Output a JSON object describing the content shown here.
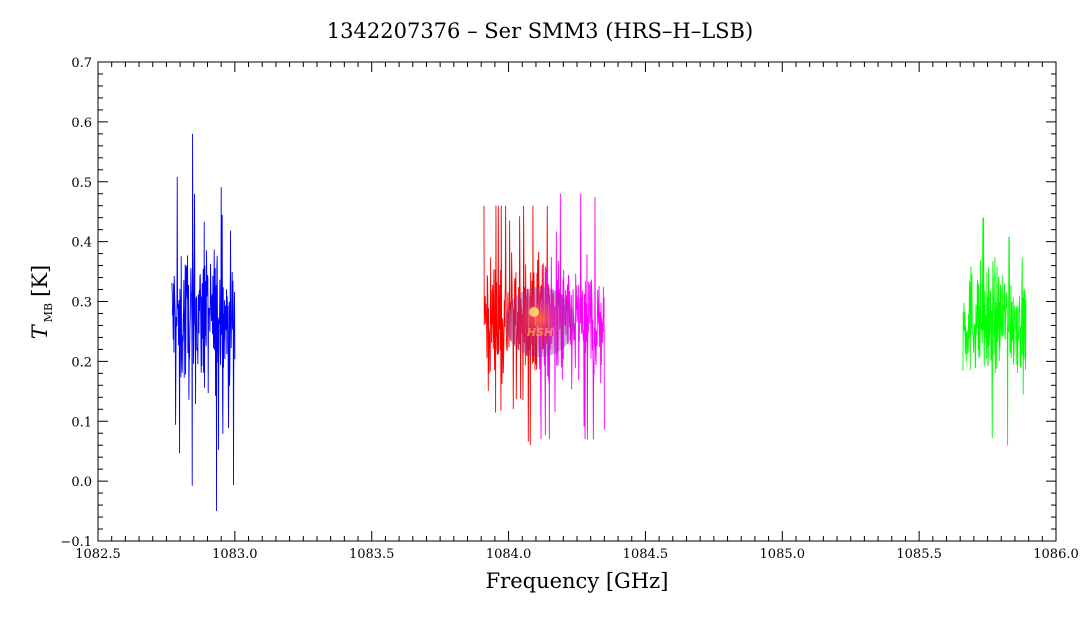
{
  "chart_data": {
    "type": "line",
    "title": "1342207376 – Ser SMM3 (HRS–H–LSB)",
    "xlabel": "Frequency [GHz]",
    "ylabel_main": "T",
    "ylabel_sub": "MB",
    "ylabel_unit": "[K]",
    "xlim": [
      1082.5,
      1086.0
    ],
    "ylim": [
      -0.1,
      0.7
    ],
    "x_ticks": [
      "1082.5",
      "1083.0",
      "1083.5",
      "1084.0",
      "1084.5",
      "1085.0",
      "1085.5",
      "1086.0"
    ],
    "y_ticks": [
      "−0.1",
      "0.0",
      "0.1",
      "0.2",
      "0.3",
      "0.4",
      "0.5",
      "0.6",
      "0.7"
    ],
    "grid": false,
    "series": [
      {
        "color": "#0000ff",
        "x_range": [
          1082.77,
          1083.0
        ],
        "mean": 0.27,
        "noise": 0.08,
        "min": -0.05,
        "max": 0.58
      },
      {
        "color": "#ff0000",
        "x_range": [
          1083.91,
          1084.15
        ],
        "mean": 0.27,
        "noise": 0.07,
        "min": 0.06,
        "max": 0.46
      },
      {
        "color": "#ff00ff",
        "x_range": [
          1084.11,
          1084.35
        ],
        "mean": 0.26,
        "noise": 0.07,
        "min": 0.07,
        "max": 0.48
      },
      {
        "color": "#00ff00",
        "x_range": [
          1085.66,
          1085.89
        ],
        "mean": 0.27,
        "noise": 0.06,
        "min": 0.06,
        "max": 0.44
      }
    ]
  },
  "watermark": {
    "text": "HSH"
  }
}
